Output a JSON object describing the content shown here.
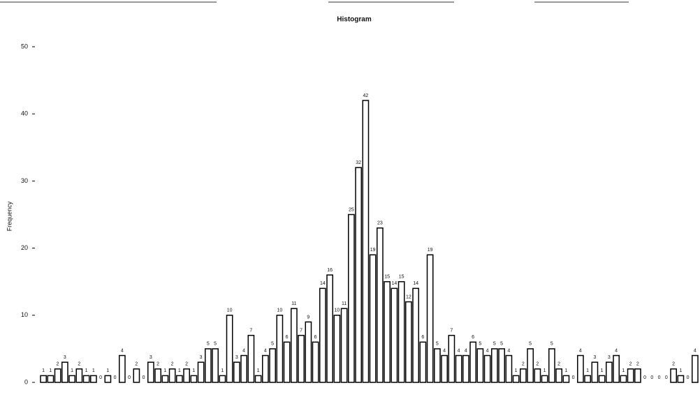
{
  "chart_data": {
    "type": "bar",
    "title": "Histogram",
    "y_label": "Frequency",
    "values": [
      1,
      1,
      2,
      3,
      1,
      2,
      1,
      1,
      0,
      1,
      0,
      4,
      0,
      2,
      0,
      3,
      2,
      1,
      2,
      1,
      2,
      1,
      3,
      5,
      5,
      1,
      10,
      3,
      4,
      7,
      1,
      4,
      5,
      10,
      6,
      11,
      7,
      9,
      6,
      14,
      16,
      10,
      11,
      25,
      32,
      42,
      19,
      23,
      15,
      14,
      15,
      12,
      14,
      6,
      19,
      5,
      4,
      7,
      4,
      4,
      6,
      5,
      4,
      5,
      5,
      4,
      1,
      2,
      5,
      2,
      1,
      5,
      2,
      1,
      0,
      4,
      1,
      3,
      1,
      3,
      4,
      1,
      2,
      2,
      0,
      0,
      0,
      0,
      2,
      1,
      0,
      4
    ],
    "ylim": [
      0,
      50
    ],
    "yticks": [
      0,
      10,
      20,
      30,
      40,
      50
    ],
    "bar_fill": "#ffffff",
    "bar_stroke": "#000000"
  }
}
